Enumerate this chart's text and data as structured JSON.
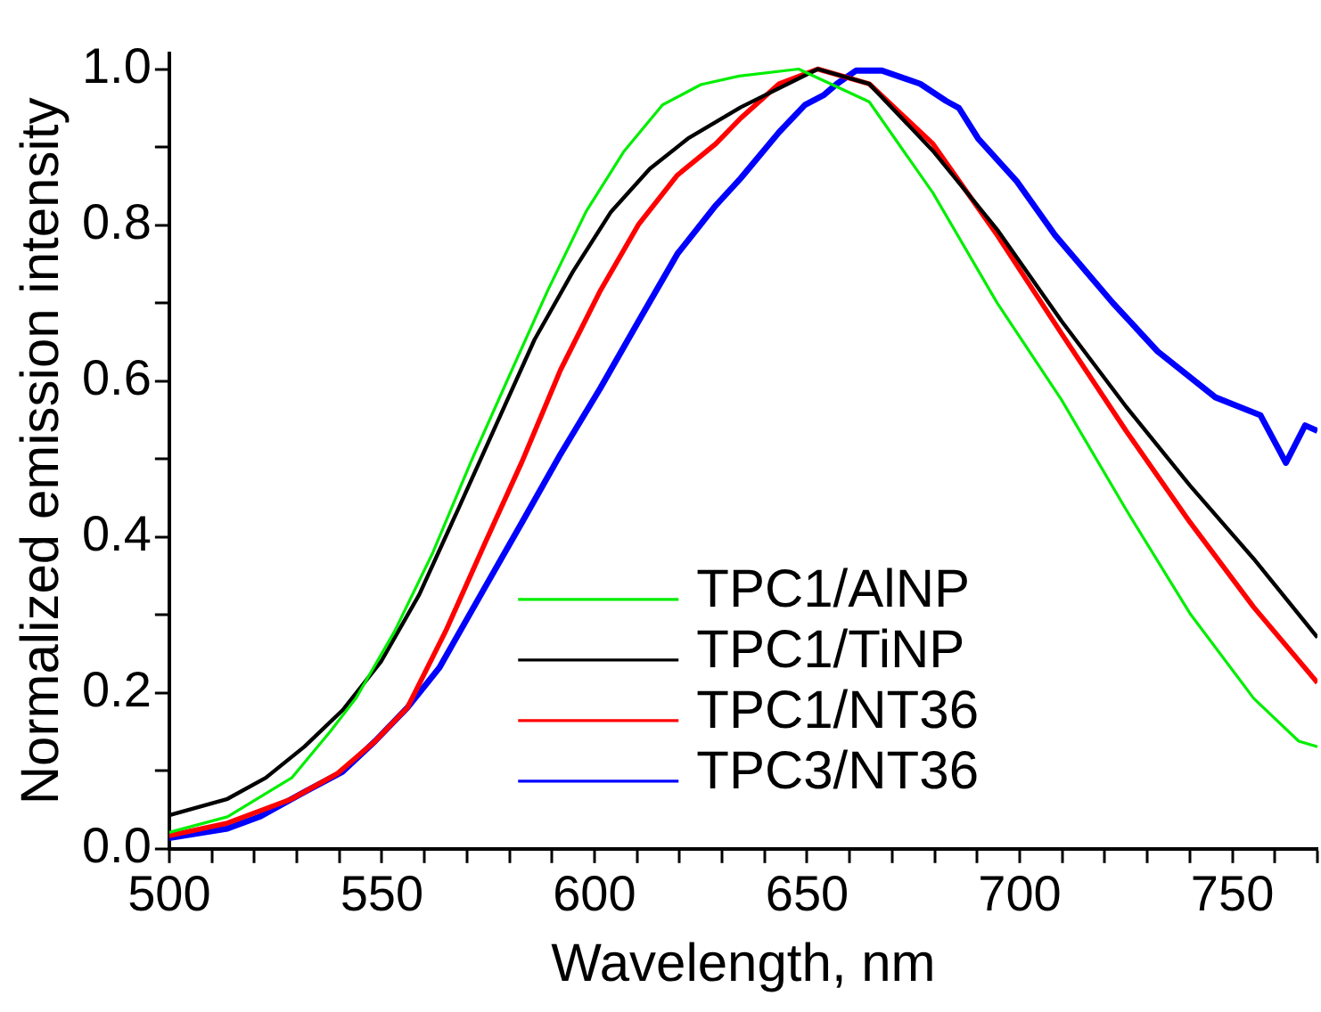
{
  "chart_data": {
    "type": "line",
    "xlabel": "Wavelength, nm",
    "ylabel": "Normalized emission intensity",
    "xlim": [
      500,
      770
    ],
    "ylim": [
      0,
      1.02
    ],
    "xticks": [
      500,
      {
        "value": 510,
        "label": null
      },
      {
        "value": 520,
        "label": null
      },
      {
        "value": 530,
        "label": null
      },
      {
        "value": 540,
        "label": null
      },
      550,
      {
        "value": 560,
        "label": null
      },
      {
        "value": 570,
        "label": null
      },
      {
        "value": 580,
        "label": null
      },
      {
        "value": 590,
        "label": null
      },
      600,
      {
        "value": 610,
        "label": null
      },
      {
        "value": 620,
        "label": null
      },
      {
        "value": 630,
        "label": null
      },
      {
        "value": 640,
        "label": null
      },
      650,
      {
        "value": 660,
        "label": null
      },
      {
        "value": 670,
        "label": null
      },
      {
        "value": 680,
        "label": null
      },
      {
        "value": 690,
        "label": null
      },
      700,
      {
        "value": 710,
        "label": null
      },
      {
        "value": 720,
        "label": null
      },
      {
        "value": 730,
        "label": null
      },
      {
        "value": 740,
        "label": null
      },
      750,
      {
        "value": 760,
        "label": null
      },
      {
        "value": 770,
        "label": null
      }
    ],
    "yticks": [
      {
        "value": 0,
        "label": "0.0"
      },
      {
        "value": 0.1,
        "label": null
      },
      {
        "value": 0.2,
        "label": "0.2"
      },
      {
        "value": 0.3,
        "label": null
      },
      {
        "value": 0.4,
        "label": "0.4"
      },
      {
        "value": 0.5,
        "label": null
      },
      {
        "value": 0.6,
        "label": "0.6"
      },
      {
        "value": 0.7,
        "label": null
      },
      {
        "value": 0.8,
        "label": "0.8"
      },
      {
        "value": 0.9,
        "label": null
      },
      {
        "value": 1,
        "label": "1.0"
      }
    ],
    "grid": false,
    "legend": "bottom right",
    "marker": "none",
    "line_style": "solid",
    "series": [
      {
        "name": "TPC1/AlNP",
        "color": "#00ee00",
        "x": [
          500,
          513.7,
          528.8,
          537.8,
          543.9,
          553,
          562,
          571,
          580,
          589,
          598,
          607,
          616,
          625,
          634,
          648,
          664.6,
          679.6,
          694.7,
          709.8,
          725,
          740,
          755,
          765.6,
          770
        ],
        "values": [
          0.021,
          0.041,
          0.091,
          0.15,
          0.193,
          0.279,
          0.38,
          0.497,
          0.607,
          0.716,
          0.817,
          0.895,
          0.954,
          0.98,
          0.991,
          1.0,
          0.958,
          0.841,
          0.7,
          0.576,
          0.435,
          0.302,
          0.193,
          0.138,
          0.131
        ]
      },
      {
        "name": "TPC1/TiNP",
        "color": "#000000",
        "x": [
          500,
          513.7,
          522.7,
          531.8,
          540.8,
          549.8,
          558.8,
          567.9,
          576.9,
          585.9,
          594.9,
          603.9,
          613,
          622,
          634.4,
          652.5,
          664.6,
          679.6,
          694.7,
          709.8,
          725,
          740,
          755,
          770
        ],
        "values": [
          0.043,
          0.064,
          0.091,
          0.131,
          0.178,
          0.24,
          0.326,
          0.435,
          0.544,
          0.653,
          0.74,
          0.817,
          0.872,
          0.911,
          0.951,
          1.0,
          0.981,
          0.895,
          0.794,
          0.677,
          0.567,
          0.466,
          0.372,
          0.271
        ]
      },
      {
        "name": "TPC1/NT36",
        "color": "#ff0000",
        "x": [
          500,
          513.7,
          528.8,
          539.4,
          548.4,
          556,
          565,
          574,
          583,
          592,
          601.4,
          610.4,
          619.5,
          628.5,
          634.4,
          643.4,
          652.5,
          664.6,
          679.6,
          694.7,
          709.8,
          725,
          740,
          755,
          770
        ],
        "values": [
          0.017,
          0.033,
          0.064,
          0.096,
          0.138,
          0.181,
          0.279,
          0.389,
          0.497,
          0.614,
          0.716,
          0.801,
          0.864,
          0.904,
          0.937,
          0.981,
          1.0,
          0.981,
          0.904,
          0.787,
          0.661,
          0.536,
          0.419,
          0.31,
          0.213
        ]
      },
      {
        "name": "TPC3/NT36",
        "color": "#0000ff",
        "x": [
          500,
          513.7,
          521.2,
          531.8,
          540.8,
          548.4,
          556,
          563.5,
          574,
          583,
          592,
          601.4,
          610.4,
          619.5,
          628.5,
          634.4,
          643.4,
          649.5,
          654,
          657,
          661.5,
          667.6,
          676.6,
          682.7,
          685.7,
          690.2,
          699.3,
          708.3,
          721.9,
          732.4,
          746,
          756.6,
          762.6,
          767.1,
          770
        ],
        "values": [
          0.014,
          0.026,
          0.041,
          0.073,
          0.099,
          0.138,
          0.181,
          0.232,
          0.333,
          0.419,
          0.506,
          0.591,
          0.677,
          0.763,
          0.825,
          0.86,
          0.919,
          0.954,
          0.967,
          0.981,
          0.998,
          0.998,
          0.981,
          0.959,
          0.95,
          0.911,
          0.856,
          0.787,
          0.7,
          0.638,
          0.579,
          0.556,
          0.495,
          0.543,
          0.536
        ]
      }
    ]
  }
}
